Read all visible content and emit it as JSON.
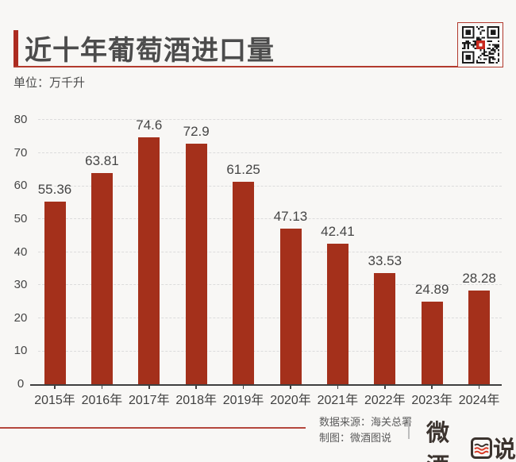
{
  "header": {
    "title": "近十年葡萄酒进口量",
    "unit_label": "单位：万千升"
  },
  "chart_data": {
    "type": "bar",
    "title": "近十年葡萄酒进口量",
    "categories": [
      "2015年",
      "2016年",
      "2017年",
      "2018年",
      "2019年",
      "2020年",
      "2021年",
      "2022年",
      "2023年",
      "2024年"
    ],
    "values": [
      55.36,
      63.81,
      74.6,
      72.9,
      61.25,
      47.13,
      42.41,
      33.53,
      24.89,
      28.28
    ],
    "value_labels": [
      "55.36",
      "63.81",
      "74.6",
      "72.9",
      "61.25",
      "47.13",
      "42.41",
      "33.53",
      "24.89",
      "28.28"
    ],
    "xlabel": "",
    "ylabel": "万千升",
    "ylim": [
      0,
      80
    ],
    "ytick_step": 10,
    "grid": "horizontal-dashed",
    "legend": "none",
    "bar_color": "#A4301B"
  },
  "footer": {
    "source_line": "数据来源：海关总署",
    "credit_line": "制图：微酒图说",
    "logo_text": "微酒图说",
    "logo_left": "微酒",
    "logo_boxed_char": "图",
    "logo_right": "说"
  },
  "colors": {
    "background": "#F8F7F5",
    "bar": "#A4301B",
    "accent_red": "#AC2C21",
    "rule_red": "#B23A2E",
    "text": "#4C4C4C",
    "gridline": "#DCDCDC"
  }
}
